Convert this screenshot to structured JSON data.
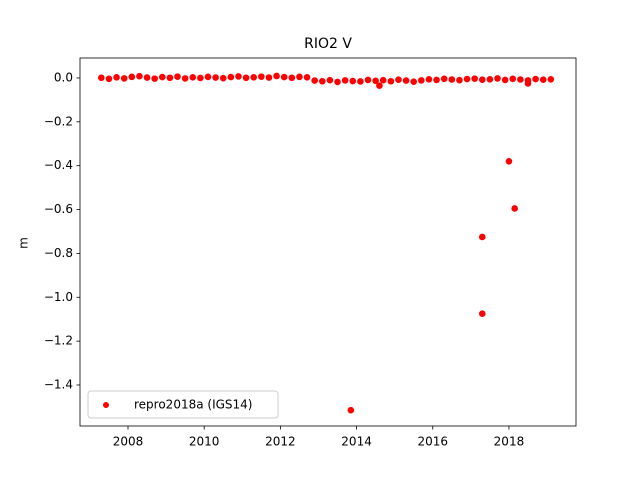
{
  "chart_data": {
    "type": "scatter",
    "title": "RIO2 V",
    "ylabel": "m",
    "xlim": [
      2006.74,
      2019.76
    ],
    "ylim": [
      -1.587,
      0.091
    ],
    "xticks": [
      2008,
      2010,
      2012,
      2014,
      2016,
      2018
    ],
    "yticks": [
      {
        "value": 0,
        "label": "0.0"
      },
      {
        "value": -0.2,
        "label": "−0.2"
      },
      {
        "value": -0.4,
        "label": "−0.4"
      },
      {
        "value": -0.6,
        "label": "−0.6"
      },
      {
        "value": -0.8,
        "label": "−0.8"
      },
      {
        "value": -1.0,
        "label": "−1.0"
      },
      {
        "value": -1.2,
        "label": "−1.2"
      },
      {
        "value": -1.4,
        "label": "−1.4"
      }
    ],
    "grid": false,
    "legend": "lower left",
    "x": [
      2007.3,
      2007.5,
      2007.7,
      2007.9,
      2008.1,
      2008.3,
      2008.5,
      2008.7,
      2008.9,
      2009.1,
      2009.3,
      2009.5,
      2009.7,
      2009.9,
      2010.1,
      2010.3,
      2010.5,
      2010.7,
      2010.9,
      2011.1,
      2011.3,
      2011.5,
      2011.7,
      2011.9,
      2012.1,
      2012.3,
      2012.5,
      2012.7,
      2012.9,
      2013.1,
      2013.3,
      2013.5,
      2013.7,
      2013.9,
      2014.1,
      2014.3,
      2014.5,
      2014.7,
      2014.9,
      2015.1,
      2015.3,
      2015.5,
      2015.7,
      2015.9,
      2016.1,
      2016.3,
      2016.5,
      2016.7,
      2016.9,
      2017.1,
      2017.3,
      2017.5,
      2017.7,
      2017.9,
      2018.1,
      2018.3,
      2018.5,
      2018.7,
      2018.9,
      2019.1,
      2014.6,
      2017.3,
      2017.3,
      2018.0,
      2018.15,
      2013.85,
      2018.5
    ],
    "series": [
      {
        "name": "repro2018a (IGS14)",
        "color": "#ff0000",
        "values": [
          0.001,
          -0.004,
          0.003,
          -0.002,
          0.005,
          0.008,
          0.002,
          -0.003,
          0.004,
          0.001,
          0.006,
          -0.002,
          0.003,
          0,
          0.005,
          0.002,
          -0.001,
          0.004,
          0.007,
          0.001,
          0.003,
          0.006,
          0.002,
          0.009,
          0.004,
          0.001,
          0.005,
          0.003,
          -0.012,
          -0.015,
          -0.01,
          -0.018,
          -0.011,
          -0.014,
          -0.016,
          -0.009,
          -0.013,
          -0.01,
          -0.015,
          -0.008,
          -0.012,
          -0.017,
          -0.011,
          -0.006,
          -0.009,
          -0.004,
          -0.007,
          -0.01,
          -0.005,
          -0.003,
          -0.008,
          -0.006,
          -0.002,
          -0.009,
          -0.004,
          -0.007,
          -0.011,
          -0.005,
          -0.008,
          -0.006,
          -0.035,
          -0.725,
          -1.075,
          -0.38,
          -0.595,
          -1.515,
          -0.025
        ]
      }
    ]
  }
}
